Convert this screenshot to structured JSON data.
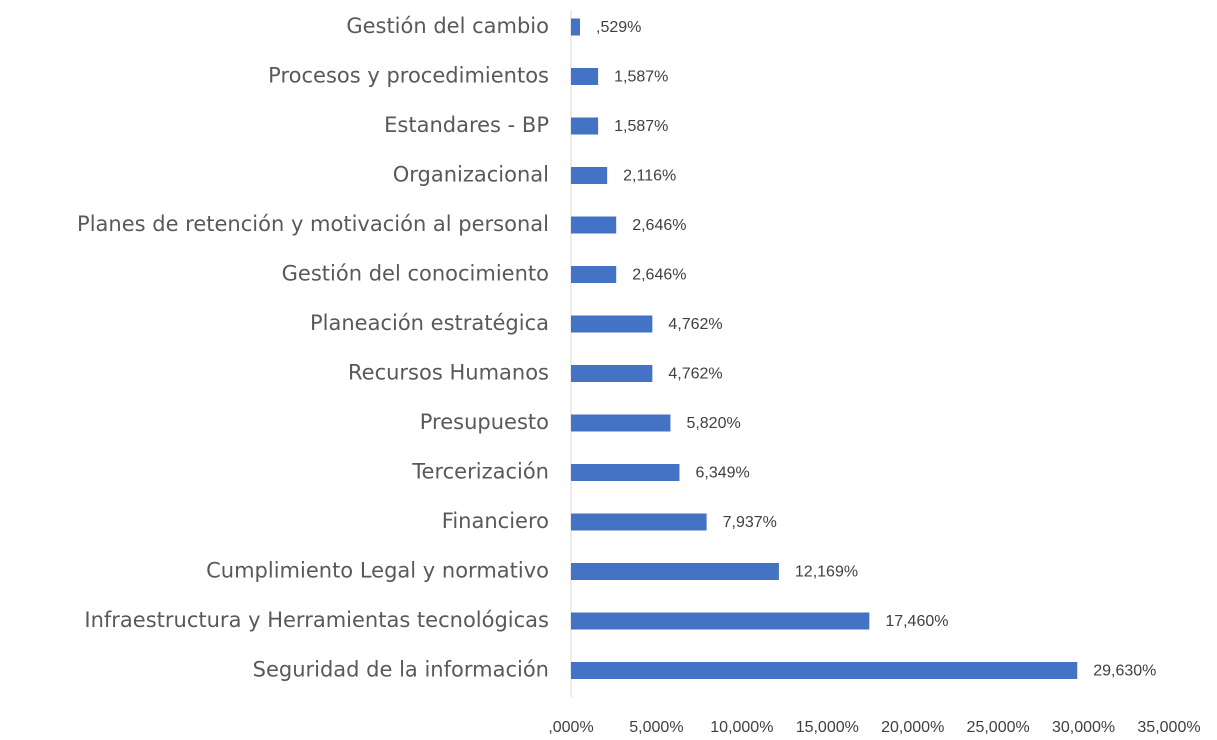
{
  "chart_data": {
    "type": "barh",
    "categories": [
      "Gestión del cambio",
      "Procesos y procedimientos",
      "Estandares - BP",
      "Organizacional",
      "Planes de retención y motivación al personal",
      "Gestión del conocimiento",
      "Planeación estratégica",
      "Recursos Humanos",
      "Presupuesto",
      "Tercerización",
      "Financiero",
      "Cumplimiento Legal y normativo",
      "Infraestructura y Herramientas tecnológicas",
      "Seguridad de la información"
    ],
    "values": [
      0.529,
      1.587,
      1.587,
      2.116,
      2.646,
      2.646,
      4.762,
      4.762,
      5.82,
      6.349,
      7.937,
      12.169,
      17.46,
      29.63
    ],
    "value_labels": [
      ",529%",
      "1,587%",
      "1,587%",
      "2,116%",
      "2,646%",
      "2,646%",
      "4,762%",
      "4,762%",
      "5,820%",
      "6,349%",
      "7,937%",
      "12,169%",
      "17,460%",
      "29,630%"
    ],
    "color": "#4472c4",
    "xlim": [
      0,
      35
    ],
    "xticks": [
      {
        "value": 0,
        "label": ",000%"
      },
      {
        "value": 5,
        "label": "5,000%"
      },
      {
        "value": 10,
        "label": "10,000%"
      },
      {
        "value": 15,
        "label": "15,000%"
      },
      {
        "value": 20,
        "label": "20,000%"
      },
      {
        "value": 25,
        "label": "25,000%"
      },
      {
        "value": 30,
        "label": "30,000%"
      },
      {
        "value": 35,
        "label": "35,000%"
      }
    ],
    "grid": false
  }
}
